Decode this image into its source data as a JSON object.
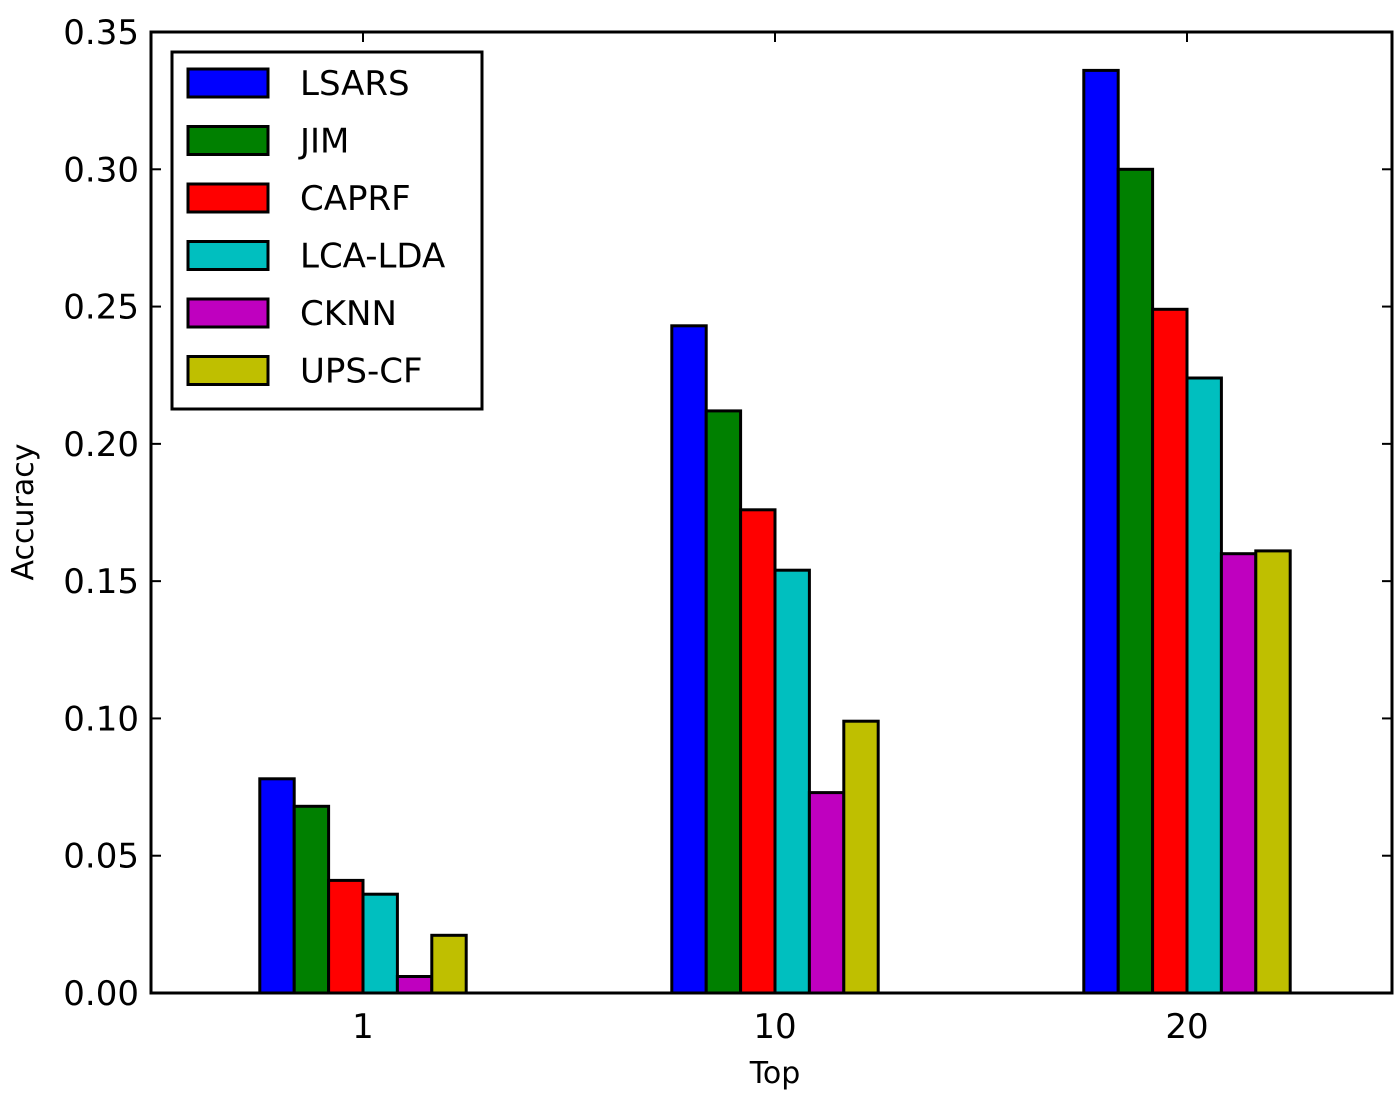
{
  "chart_data": {
    "type": "bar",
    "title": "",
    "xlabel": "Top",
    "ylabel": "Accuracy",
    "categories": [
      "1",
      "10",
      "20"
    ],
    "ylim": [
      0,
      0.35
    ],
    "yticks": [
      "0.00",
      "0.05",
      "0.10",
      "0.15",
      "0.20",
      "0.25",
      "0.30",
      "0.35"
    ],
    "legend_position": "top-left",
    "grid": false,
    "series": [
      {
        "name": "LSARS",
        "color": "#0000ff",
        "values": [
          0.078,
          0.243,
          0.336
        ]
      },
      {
        "name": "JIM",
        "color": "#008000",
        "values": [
          0.068,
          0.212,
          0.3
        ]
      },
      {
        "name": "CAPRF",
        "color": "#ff0000",
        "values": [
          0.041,
          0.176,
          0.249
        ]
      },
      {
        "name": "LCA-LDA",
        "color": "#00bfbf",
        "values": [
          0.036,
          0.154,
          0.224
        ]
      },
      {
        "name": "CKNN",
        "color": "#bf00bf",
        "values": [
          0.006,
          0.073,
          0.16
        ]
      },
      {
        "name": "UPS-CF",
        "color": "#bfbf00",
        "values": [
          0.021,
          0.099,
          0.161
        ]
      }
    ]
  }
}
